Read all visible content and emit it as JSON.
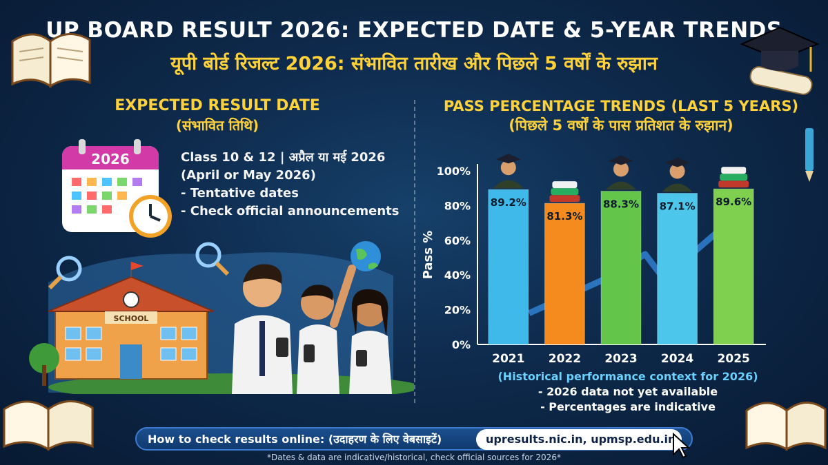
{
  "title": {
    "english": "UP BOARD RESULT 2026: EXPECTED DATE & 5-YEAR TRENDS",
    "hindi": "यूपी बोर्ड रिजल्ट 2026: संभावित तारीख और पिछले 5 वर्षों के रुझान"
  },
  "left_panel": {
    "heading": "EXPECTED RESULT DATE",
    "heading_hindi": "(संभावित तिथि)",
    "calendar_year": "2026",
    "line1": "Class 10 & 12 | अप्रैल या मई 2026",
    "line2": "(April or May 2026)",
    "bullet1": "- Tentative dates",
    "bullet2": "- Check official announcements",
    "school_sign": "SCHOOL"
  },
  "right_panel": {
    "heading": "PASS PERCENTAGE TRENDS (LAST 5 YEARS)",
    "heading_hindi": "(पिछले 5 वर्षों के पास प्रतिशत के रुझान)",
    "note_main": "(Historical performance context for 2026)",
    "note1": "- 2026 data not yet available",
    "note2": "- Percentages are indicative"
  },
  "chart_data": {
    "type": "bar",
    "title": "PASS PERCENTAGE TRENDS (LAST 5 YEARS)",
    "categories": [
      "2021",
      "2022",
      "2023",
      "2024",
      "2025"
    ],
    "values": [
      89.2,
      81.3,
      88.3,
      87.1,
      89.6
    ],
    "data_labels": [
      "89.2%",
      "81.3%",
      "88.3%",
      "87.1%",
      "89.6%"
    ],
    "ylabel": "Pass %",
    "ylim": [
      0,
      100
    ],
    "yticks": [
      "0%",
      "20%",
      "40%",
      "60%",
      "80%",
      "100%"
    ],
    "colors": [
      "#3fb8ea",
      "#f58a1f",
      "#63c64a",
      "#4cc6ea",
      "#7ed04e"
    ]
  },
  "footer": {
    "howto": "How to check results online:",
    "howto_hindi": "(उदाहरण के लिए वेबसाइटें)",
    "websites": "upresults.nic.in, upmsp.edu.in",
    "disclaimer": "*Dates & data are indicative/historical, check official sources for 2026*"
  },
  "colors": {
    "background": "#0e2a4c",
    "accent_yellow": "#ffd23c",
    "note_blue": "#6ad1ff"
  }
}
